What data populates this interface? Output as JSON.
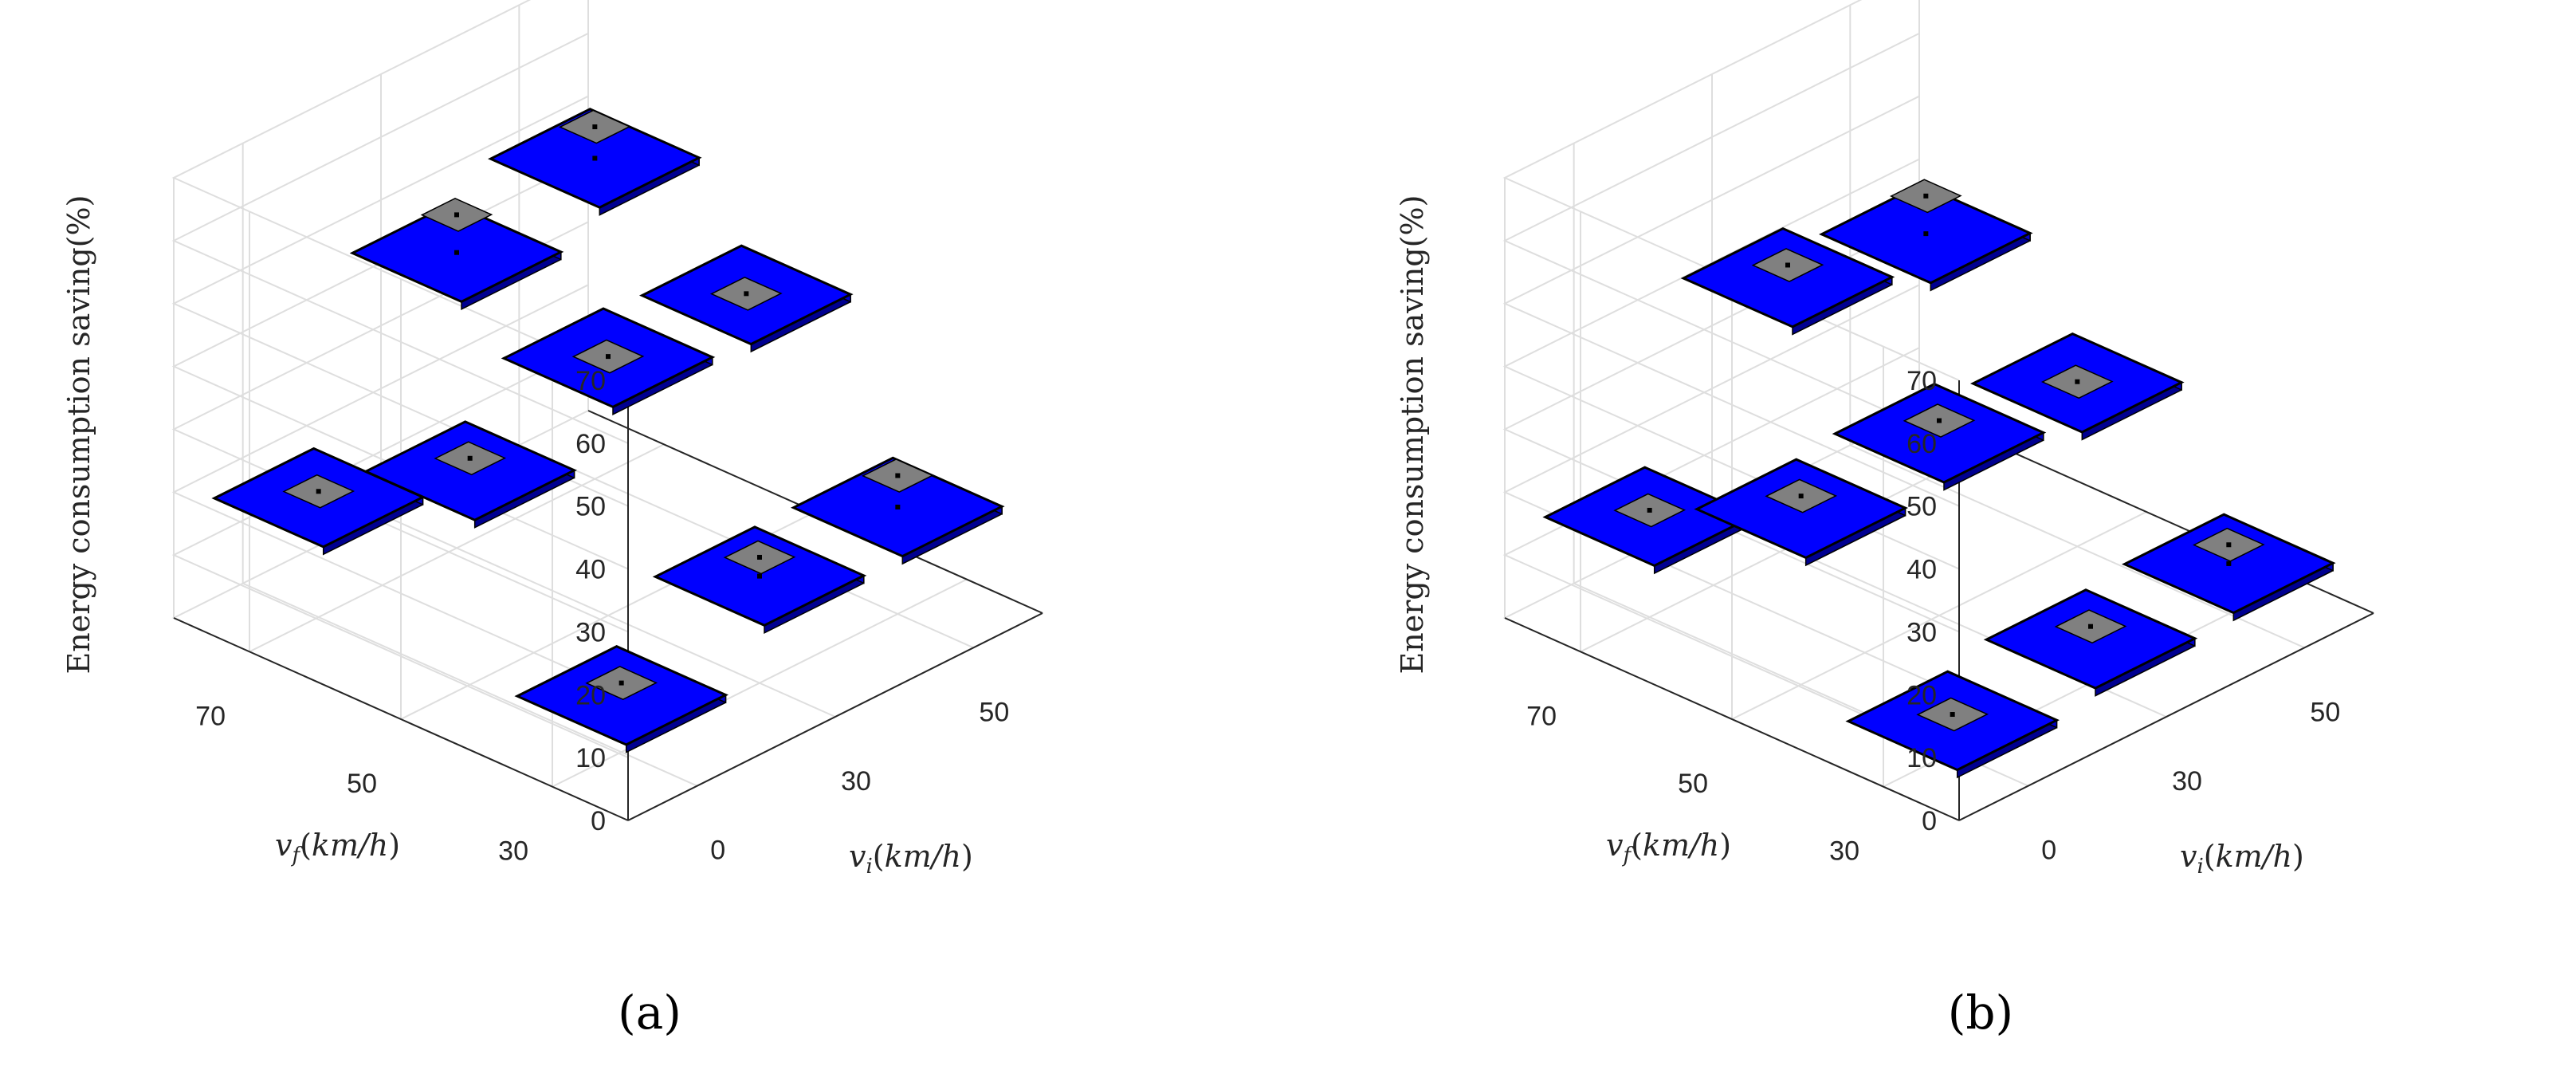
{
  "chart_data": [
    {
      "type": "bar3",
      "caption": "(a)",
      "zlabel": "Energy consumption saving(%)",
      "xlabel": "v_i(km/h)",
      "ylabel": "v_f(km/h)",
      "x_ticks": [
        "0",
        "30",
        "50"
      ],
      "y_ticks": [
        "70",
        "50",
        "30"
      ],
      "z_ticks": [
        "0",
        "10",
        "20",
        "30",
        "40",
        "50",
        "60",
        "70"
      ],
      "zlim": [
        0,
        70
      ],
      "grid": true,
      "colors": {
        "bar": "#0000ff",
        "error": "#808080",
        "edge": "#000000"
      },
      "points": [
        {
          "vi": 0,
          "vf": 70,
          "value": 19,
          "low": 14,
          "high": 20
        },
        {
          "vi": 30,
          "vf": 70,
          "value": 47,
          "low": 45,
          "high": 53
        },
        {
          "vi": 50,
          "vf": 70,
          "value": 51,
          "low": 49,
          "high": 56
        },
        {
          "vi": 0,
          "vf": 50,
          "value": 34,
          "low": 32,
          "high": 36
        },
        {
          "vi": 30,
          "vf": 50,
          "value": 41,
          "low": 40,
          "high": 41
        },
        {
          "vi": 50,
          "vf": 50,
          "value": 40,
          "low": 39,
          "high": 40
        },
        {
          "vi": 0,
          "vf": 30,
          "value": 9,
          "low": 6,
          "high": 11
        },
        {
          "vi": 30,
          "vf": 30,
          "value": 17,
          "low": 15,
          "high": 20
        },
        {
          "vi": 50,
          "vf": 30,
          "value": 17,
          "low": 16,
          "high": 22
        }
      ]
    },
    {
      "type": "bar3",
      "caption": "(b)",
      "zlabel": "Energy consumption saving(%)",
      "xlabel": "v_i(km/h)",
      "ylabel": "v_f(km/h)",
      "x_ticks": [
        "0",
        "30",
        "50"
      ],
      "y_ticks": [
        "70",
        "50",
        "30"
      ],
      "z_ticks": [
        "0",
        "10",
        "20",
        "30",
        "40",
        "50",
        "60",
        "70"
      ],
      "zlim": [
        0,
        70
      ],
      "grid": true,
      "colors": {
        "bar": "#0000ff",
        "error": "#808080",
        "edge": "#000000"
      },
      "points": [
        {
          "vi": 0,
          "vf": 70,
          "value": 16,
          "low": 12,
          "high": 17
        },
        {
          "vi": 30,
          "vf": 70,
          "value": 43,
          "low": 41,
          "high": 45
        },
        {
          "vi": 50,
          "vf": 70,
          "value": 39,
          "low": 38,
          "high": 45
        },
        {
          "vi": 0,
          "vf": 50,
          "value": 28,
          "low": 25,
          "high": 30
        },
        {
          "vi": 30,
          "vf": 50,
          "value": 29,
          "low": 28,
          "high": 31
        },
        {
          "vi": 50,
          "vf": 50,
          "value": 26,
          "low": 25,
          "high": 26
        },
        {
          "vi": 0,
          "vf": 30,
          "value": 5,
          "low": 3,
          "high": 6
        },
        {
          "vi": 30,
          "vf": 30,
          "value": 7,
          "low": 5,
          "high": 9
        },
        {
          "vi": 50,
          "vf": 30,
          "value": 8,
          "low": 7,
          "high": 11
        }
      ]
    }
  ]
}
